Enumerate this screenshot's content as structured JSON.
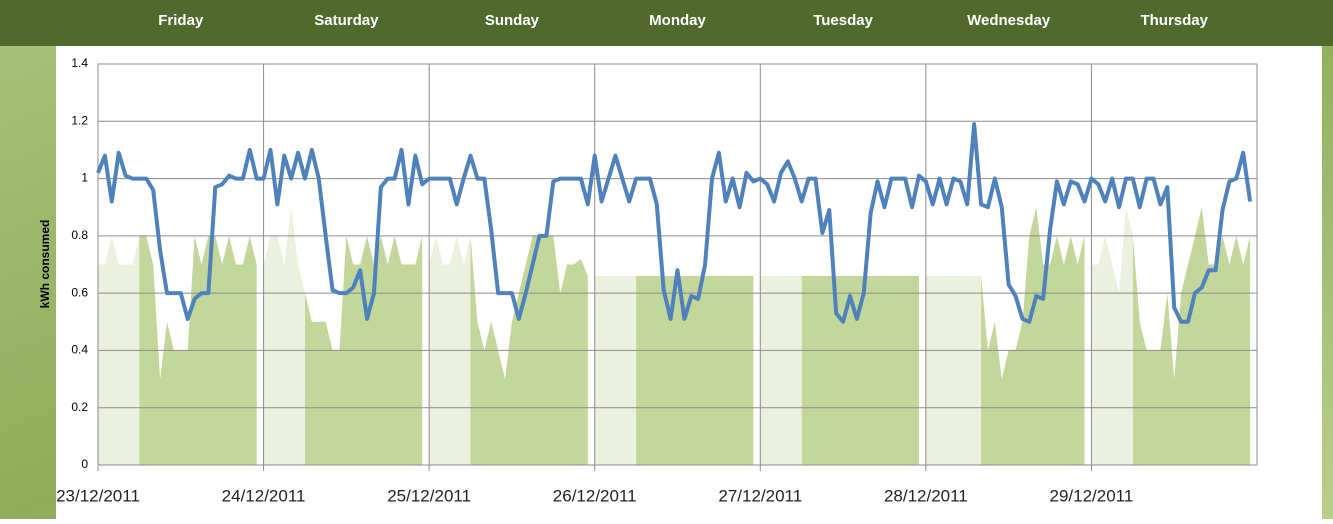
{
  "chart_data": {
    "type": "line_area",
    "day_labels": [
      "Friday",
      "Saturday",
      "Sunday",
      "Monday",
      "Tuesday",
      "Wednesday",
      "Thursday"
    ],
    "y_label": "kWh consumed",
    "xlim": [
      0,
      168
    ],
    "xticks": [
      {
        "value": 0,
        "label": "23/12/2011"
      },
      {
        "value": 24,
        "label": "24/12/2011"
      },
      {
        "value": 48,
        "label": "25/12/2011"
      },
      {
        "value": 72,
        "label": "26/12/2011"
      },
      {
        "value": 96,
        "label": "27/12/2011"
      },
      {
        "value": 120,
        "label": "28/12/2011"
      },
      {
        "value": 144,
        "label": "29/12/2011"
      }
    ],
    "ylim": [
      0,
      1.4
    ],
    "yticks": [
      0,
      0.2,
      0.4,
      0.6,
      0.8,
      1,
      1.2,
      1.4
    ],
    "grid": true,
    "x": [
      0,
      1,
      2,
      3,
      4,
      5,
      6,
      7,
      8,
      9,
      10,
      11,
      12,
      13,
      14,
      15,
      16,
      17,
      18,
      19,
      20,
      21,
      22,
      23,
      24,
      25,
      26,
      27,
      28,
      29,
      30,
      31,
      32,
      33,
      34,
      35,
      36,
      37,
      38,
      39,
      40,
      41,
      42,
      43,
      44,
      45,
      46,
      47,
      48,
      49,
      50,
      51,
      52,
      53,
      54,
      55,
      56,
      57,
      58,
      59,
      60,
      61,
      62,
      63,
      64,
      65,
      66,
      67,
      68,
      69,
      70,
      71,
      72,
      73,
      74,
      75,
      76,
      77,
      78,
      79,
      80,
      81,
      82,
      83,
      84,
      85,
      86,
      87,
      88,
      89,
      90,
      91,
      92,
      93,
      94,
      95,
      96,
      97,
      98,
      99,
      100,
      101,
      102,
      103,
      104,
      105,
      106,
      107,
      108,
      109,
      110,
      111,
      112,
      113,
      114,
      115,
      116,
      117,
      118,
      119,
      120,
      121,
      122,
      123,
      124,
      125,
      126,
      127,
      128,
      129,
      130,
      131,
      132,
      133,
      134,
      135,
      136,
      137,
      138,
      139,
      140,
      141,
      142,
      143,
      144,
      145,
      146,
      147,
      148,
      149,
      150,
      151,
      152,
      153,
      154,
      155,
      156,
      157,
      158,
      159,
      160,
      161,
      162,
      163,
      164,
      165,
      166,
      167
    ],
    "areas": [
      {
        "color": "#ebf1de",
        "values": [
          0.7,
          0.7,
          0.8,
          0.7,
          0.7,
          0.7,
          0.8,
          null,
          null,
          null,
          null,
          null,
          null,
          null,
          null,
          null,
          null,
          null,
          null,
          null,
          null,
          null,
          null,
          null,
          0.7,
          0.8,
          0.8,
          0.7,
          0.9,
          0.7,
          0.6,
          null,
          null,
          null,
          null,
          null,
          null,
          null,
          null,
          null,
          null,
          null,
          null,
          null,
          null,
          null,
          null,
          null,
          0.7,
          0.8,
          0.7,
          0.7,
          0.8,
          0.7,
          0.8,
          null,
          null,
          null,
          null,
          null,
          null,
          null,
          null,
          null,
          null,
          null,
          null,
          null,
          null,
          null,
          null,
          null,
          0.66,
          0.66,
          0.66,
          0.66,
          0.66,
          0.66,
          0.66,
          null,
          null,
          null,
          null,
          null,
          null,
          null,
          null,
          null,
          null,
          null,
          null,
          null,
          null,
          null,
          null,
          null,
          0.66,
          0.66,
          0.66,
          0.66,
          0.66,
          0.66,
          0.66,
          null,
          null,
          null,
          null,
          null,
          null,
          null,
          null,
          null,
          null,
          null,
          null,
          null,
          null,
          null,
          null,
          null,
          0.66,
          0.66,
          0.66,
          0.66,
          0.66,
          0.66,
          0.66,
          0.66,
          0.66,
          null,
          null,
          null,
          null,
          null,
          null,
          null,
          null,
          null,
          null,
          null,
          null,
          null,
          null,
          null,
          0.7,
          0.7,
          0.8,
          0.7,
          0.6,
          0.9,
          0.8,
          null,
          null,
          null,
          null,
          null,
          null,
          null,
          null,
          null,
          null,
          null,
          null,
          null,
          null,
          null,
          null,
          null
        ]
      },
      {
        "color": "#c4d79b",
        "values": [
          null,
          null,
          null,
          null,
          null,
          null,
          0.8,
          0.8,
          0.7,
          0.3,
          0.5,
          0.4,
          0.4,
          0.4,
          0.8,
          0.7,
          0.8,
          0.8,
          0.7,
          0.8,
          0.7,
          0.7,
          0.8,
          0.7,
          null,
          null,
          null,
          null,
          null,
          null,
          0.6,
          0.5,
          0.5,
          0.5,
          0.4,
          0.4,
          0.8,
          0.7,
          0.7,
          0.8,
          0.7,
          0.8,
          0.7,
          0.8,
          0.7,
          0.7,
          0.7,
          0.8,
          null,
          null,
          null,
          null,
          null,
          null,
          0.8,
          0.5,
          0.4,
          0.5,
          0.4,
          0.3,
          0.5,
          0.6,
          0.7,
          0.8,
          0.8,
          0.8,
          0.8,
          0.6,
          0.7,
          0.7,
          0.72,
          0.66,
          null,
          null,
          null,
          null,
          null,
          null,
          0.66,
          0.66,
          0.66,
          0.66,
          0.66,
          0.66,
          0.66,
          0.66,
          0.66,
          0.66,
          0.66,
          0.66,
          0.66,
          0.66,
          0.66,
          0.66,
          0.66,
          0.66,
          null,
          null,
          null,
          null,
          null,
          null,
          0.66,
          0.66,
          0.66,
          0.66,
          0.66,
          0.66,
          0.66,
          0.66,
          0.66,
          0.66,
          0.66,
          0.66,
          0.66,
          0.66,
          0.66,
          0.66,
          0.66,
          0.66,
          null,
          null,
          null,
          null,
          null,
          null,
          null,
          null,
          0.66,
          0.4,
          0.5,
          0.3,
          0.4,
          0.4,
          0.5,
          0.8,
          0.9,
          0.7,
          0.7,
          0.8,
          0.7,
          0.8,
          0.7,
          0.8,
          null,
          null,
          null,
          null,
          null,
          null,
          0.8,
          0.5,
          0.4,
          0.4,
          0.4,
          0.6,
          0.3,
          0.6,
          0.7,
          0.8,
          0.9,
          0.7,
          0.7,
          0.8,
          0.7,
          0.8,
          0.7,
          0.8
        ]
      }
    ],
    "series": [
      {
        "color": "#4f81bd",
        "values": [
          1.02,
          1.08,
          0.92,
          1.09,
          1.01,
          1.0,
          1.0,
          1.0,
          0.96,
          0.75,
          0.6,
          0.6,
          0.6,
          0.51,
          0.58,
          0.6,
          0.6,
          0.97,
          0.98,
          1.01,
          1.0,
          1.0,
          1.1,
          1.0,
          1.0,
          1.1,
          0.91,
          1.08,
          1.0,
          1.09,
          1.0,
          1.1,
          1.0,
          0.8,
          0.61,
          0.6,
          0.6,
          0.62,
          0.68,
          0.51,
          0.6,
          0.97,
          1.0,
          1.0,
          1.1,
          0.91,
          1.08,
          0.98,
          1.0,
          1.0,
          1.0,
          1.0,
          0.91,
          1.0,
          1.08,
          1.0,
          1.0,
          0.82,
          0.6,
          0.6,
          0.6,
          0.51,
          0.6,
          0.7,
          0.8,
          0.8,
          0.99,
          1.0,
          1.0,
          1.0,
          1.0,
          0.91,
          1.08,
          0.92,
          1.0,
          1.08,
          1.0,
          0.92,
          1.0,
          1.0,
          1.0,
          0.91,
          0.61,
          0.51,
          0.68,
          0.51,
          0.59,
          0.58,
          0.7,
          1.0,
          1.09,
          0.92,
          1.0,
          0.9,
          1.02,
          0.99,
          1.0,
          0.98,
          0.92,
          1.02,
          1.06,
          1.0,
          0.92,
          1.0,
          1.0,
          0.81,
          0.89,
          0.53,
          0.5,
          0.59,
          0.51,
          0.6,
          0.88,
          0.99,
          0.9,
          1.0,
          1.0,
          1.0,
          0.9,
          1.01,
          0.99,
          0.91,
          1.0,
          0.91,
          1.0,
          0.99,
          0.91,
          1.19,
          0.91,
          0.9,
          1.0,
          0.9,
          0.63,
          0.59,
          0.51,
          0.5,
          0.59,
          0.58,
          0.82,
          0.99,
          0.91,
          0.99,
          0.98,
          0.92,
          1.0,
          0.98,
          0.92,
          1.0,
          0.9,
          1.0,
          1.0,
          0.9,
          1.0,
          1.0,
          0.91,
          0.97,
          0.55,
          0.5,
          0.5,
          0.6,
          0.62,
          0.68,
          0.68,
          0.89,
          0.99,
          1.0,
          1.09,
          0.92
        ]
      }
    ]
  }
}
